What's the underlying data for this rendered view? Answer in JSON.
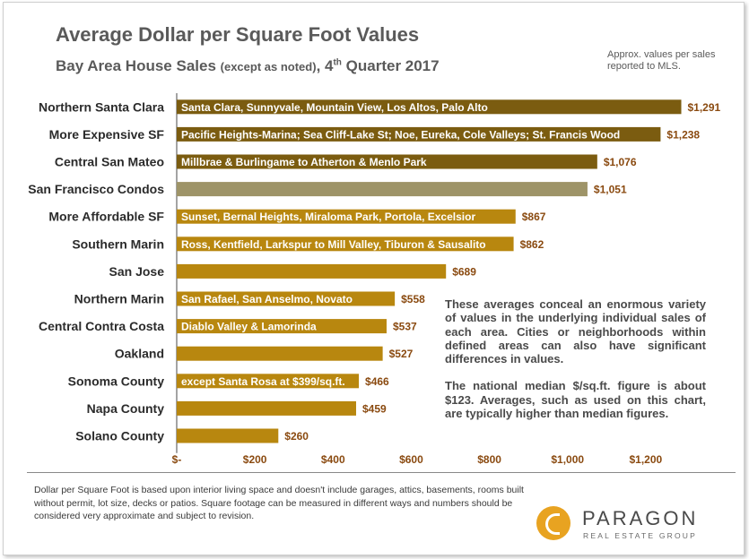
{
  "title": "Average Dollar per Square Foot Values",
  "subtitle": {
    "main": "Bay Area House Sales ",
    "qualifier": "(except as noted)",
    "period_prefix": ", 4",
    "period_sup": "th",
    "period_suffix": " Quarter 2017"
  },
  "top_note": "Approx. values per sales reported to MLS.",
  "chart_data": {
    "type": "bar",
    "orientation": "horizontal",
    "categories": [
      "Northern Santa Clara",
      "More Expensive SF",
      "Central San Mateo",
      "San Francisco Condos",
      "More Affordable SF",
      "Southern Marin",
      "San Jose",
      "Northern Marin",
      "Central Contra Costa",
      "Oakland",
      "Sonoma County",
      "Napa County",
      "Solano County"
    ],
    "values": [
      1291,
      1238,
      1076,
      1051,
      867,
      862,
      689,
      558,
      537,
      527,
      466,
      459,
      260
    ],
    "value_labels": [
      "$1,291",
      "$1,238",
      "$1,076",
      "$1,051",
      "$867",
      "$862",
      "$689",
      "$558",
      "$537",
      "$527",
      "$466",
      "$459",
      "$260"
    ],
    "bar_texts": [
      "Santa Clara, Sunnyvale, Mountain View, Los Altos, Palo Alto",
      "Pacific Heights-Marina; Sea Cliff-Lake St; Noe, Eureka, Cole Valleys; St. Francis Wood",
      "Millbrae & Burlingame to Atherton & Menlo Park",
      "",
      "Sunset, Bernal Heights, Miraloma Park, Portola, Excelsior",
      "Ross, Kentfield, Larkspur to Mill Valley, Tiburon & Sausalito",
      "",
      "San Rafael, San Anselmo, Novato",
      "Diablo Valley & Lamorinda",
      "",
      "except Santa Rosa at $399/sq.ft.",
      "",
      ""
    ],
    "bar_colors": [
      "#7b5c10",
      "#7b5c10",
      "#7b5c10",
      "#9e9468",
      "#b8870f",
      "#b8870f",
      "#b8870f",
      "#b8870f",
      "#b8870f",
      "#b8870f",
      "#b8870f",
      "#b8870f",
      "#b8870f"
    ],
    "xlim": [
      0,
      1400
    ],
    "x_ticks": [
      0,
      200,
      400,
      600,
      800,
      1000,
      1200
    ],
    "x_tick_labels": [
      "$-",
      "$200",
      "$400",
      "$600",
      "$800",
      "$1,000",
      "$1,200"
    ],
    "grid": false,
    "legend": "none"
  },
  "callout": {
    "para1": "These averages conceal an enormous variety of values in the underlying individual sales of each area. Cities or neighborhoods within defined areas can also have significant differences in values.",
    "para2": "The national median $/sq.ft. figure is about $123. Averages, such as used on this chart, are typically higher than median figures."
  },
  "footnote": "Dollar per Square Foot is based upon interior living space and doesn't include garages, attics, basements, rooms built without permit, lot size, decks or patios. Square footage can be measured in different ways and numbers should be considered very approximate and subject to revision.",
  "logo": {
    "name": "PARAGON",
    "tagline": "REAL ESTATE GROUP",
    "icon": "paragon-logo-icon",
    "accent": "#e8a321"
  }
}
